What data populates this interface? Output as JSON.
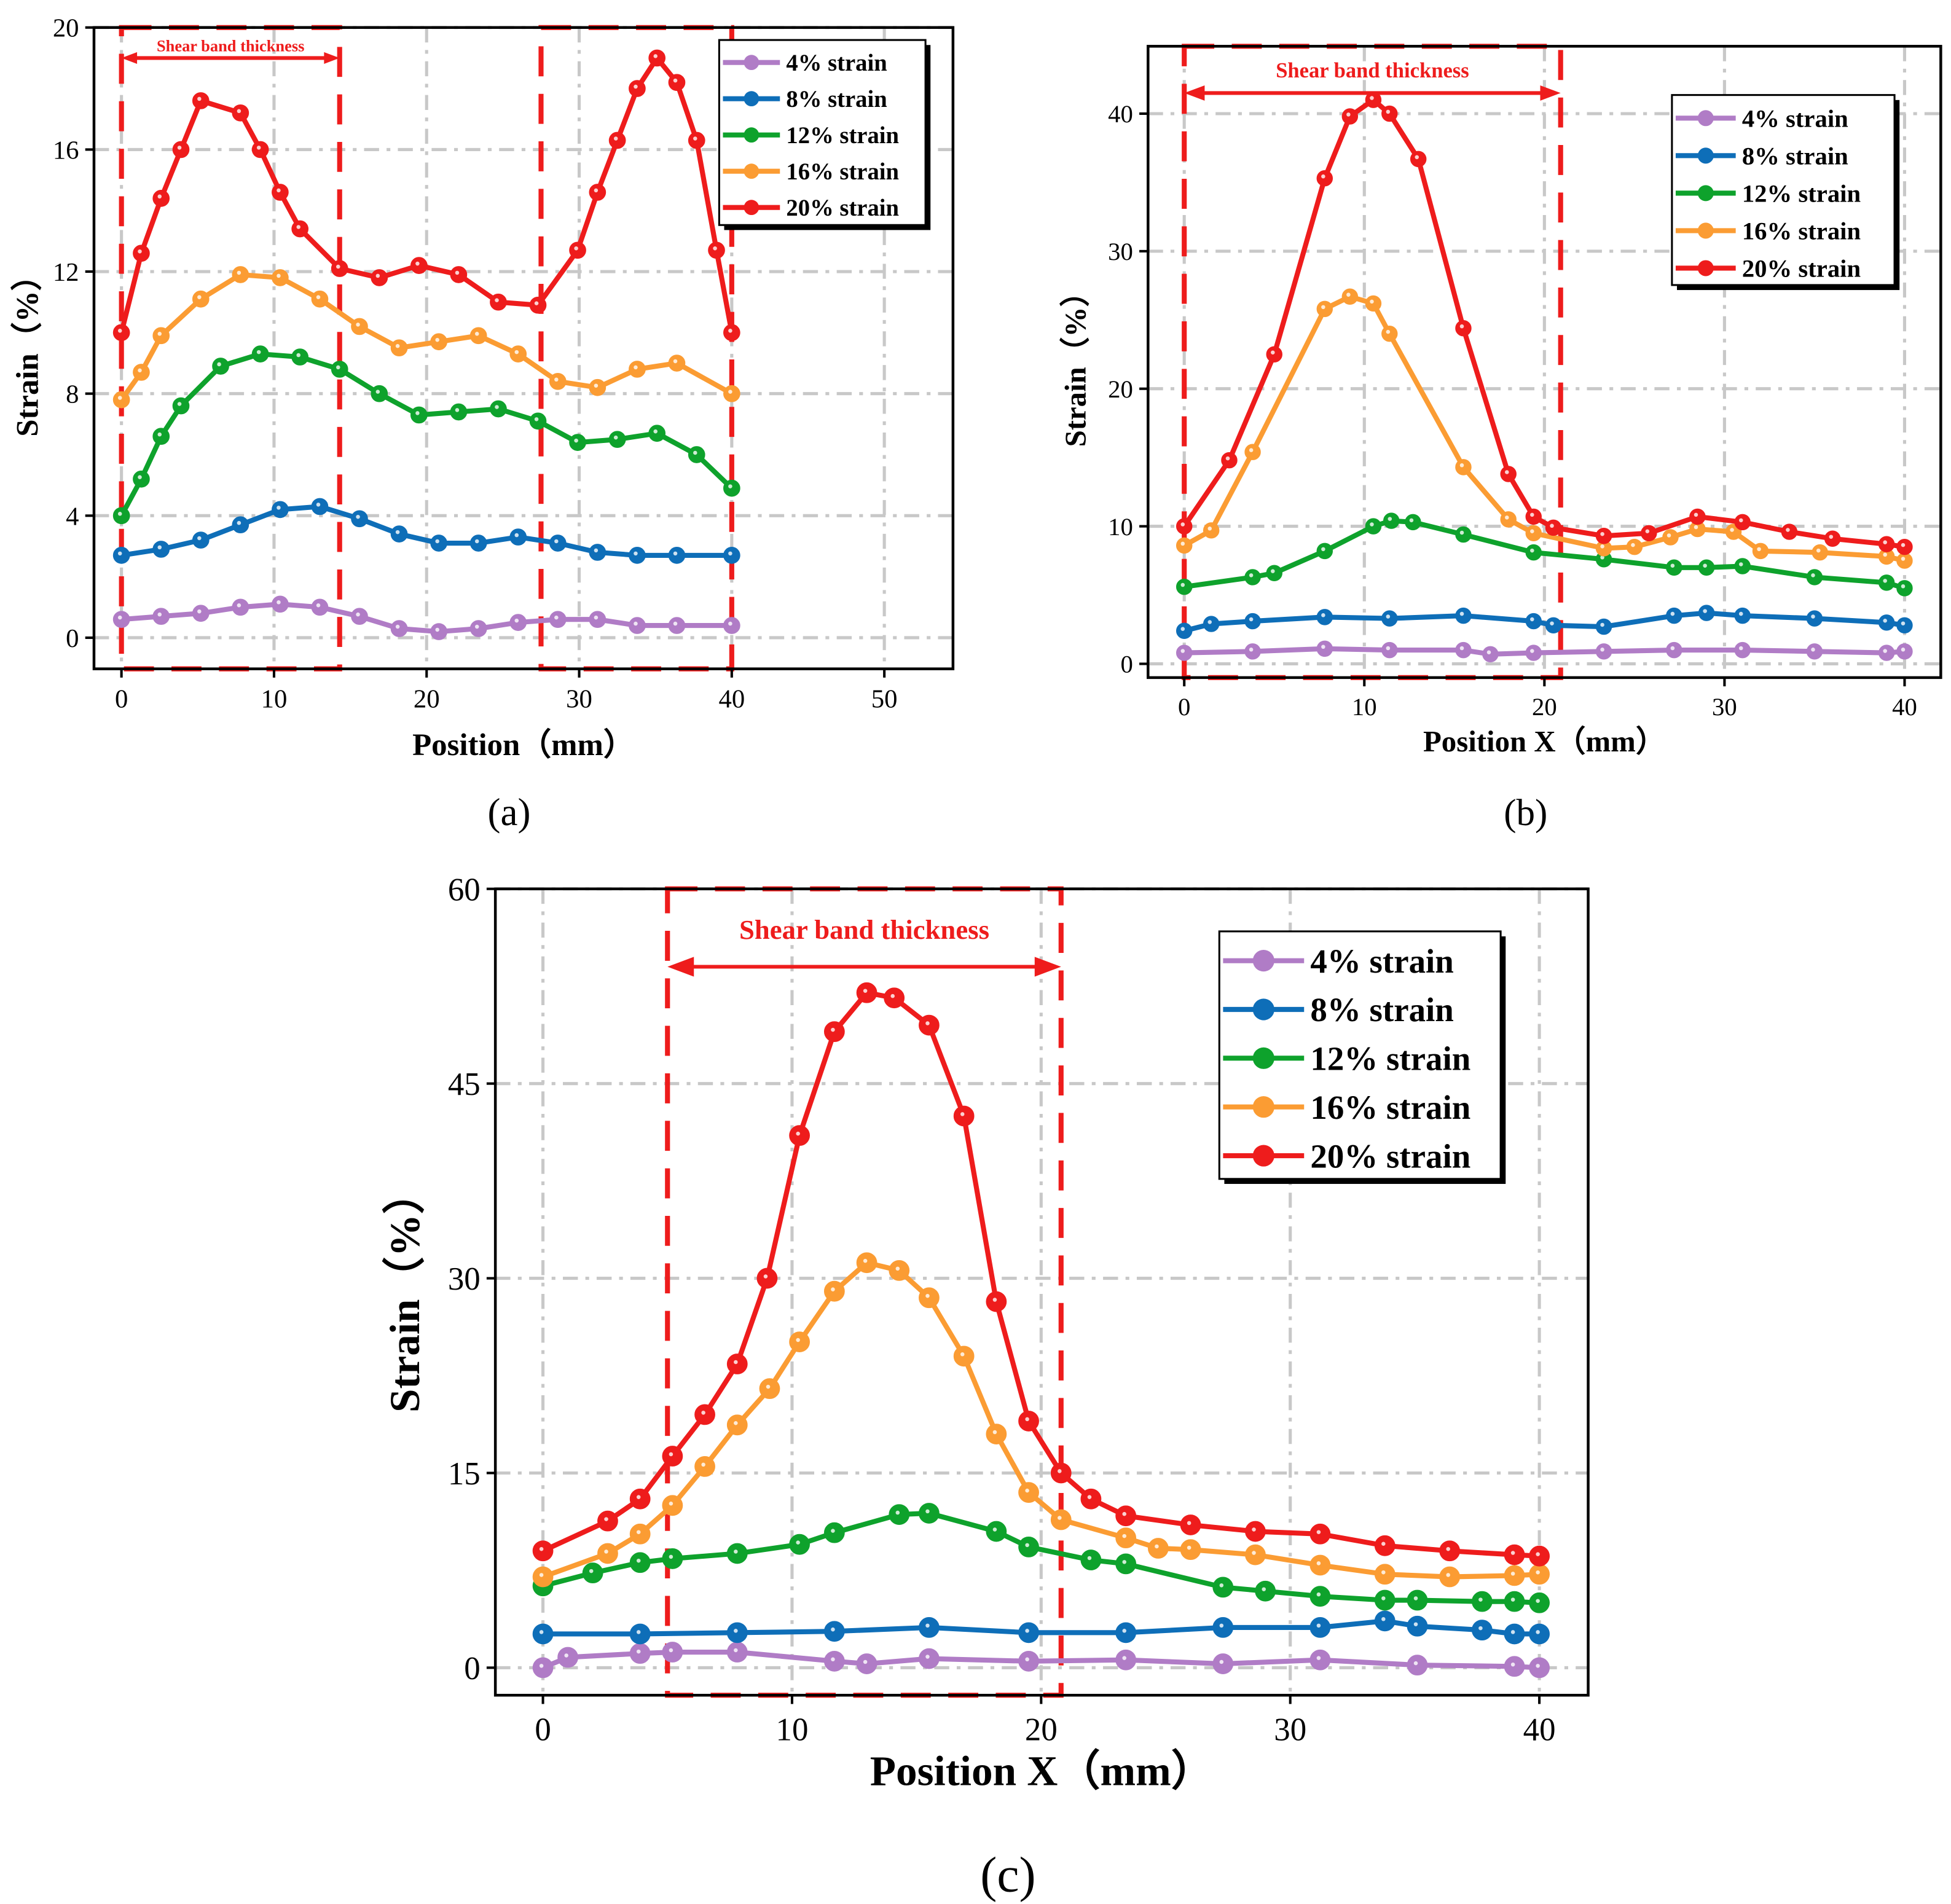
{
  "colors": {
    "4%": "#b07cc6",
    "8%": "#0e6eb8",
    "12%": "#0ea22c",
    "16%": "#fb9c33",
    "20%": "#ee1c1c",
    "annotation": "#ee1c1c",
    "grid": "#c8c8c8"
  },
  "chart_data": [
    {
      "id": "a",
      "type": "line",
      "panel_label": "(a)",
      "xlabel": "Position（mm）",
      "ylabel": "Strain（%）",
      "xlim": [
        -1.8,
        54.5
      ],
      "ylim": [
        -1.02,
        20
      ],
      "xticks": [
        0,
        10,
        20,
        30,
        40,
        50
      ],
      "yticks": [
        0,
        4,
        8,
        12,
        16,
        20
      ],
      "legend_position": "top-right",
      "annotation": {
        "text": "Shear band thickness",
        "arrow_from": 0,
        "arrow_to": 14.3,
        "arrow_y": 19.0
      },
      "shear_bands": [
        [
          0,
          14.3
        ],
        [
          27.5,
          40
        ]
      ],
      "series": [
        {
          "name": "4% strain",
          "color_key": "4%",
          "x": [
            0,
            2.6,
            5.2,
            7.8,
            10.4,
            13,
            15.6,
            18.2,
            20.8,
            23.4,
            26,
            28.6,
            31.2,
            33.8,
            36.4,
            40
          ],
          "y": [
            0.6,
            0.7,
            0.8,
            1.0,
            1.1,
            1.0,
            0.7,
            0.3,
            0.2,
            0.3,
            0.5,
            0.6,
            0.6,
            0.4,
            0.4,
            0.4
          ]
        },
        {
          "name": "8% strain",
          "color_key": "8%",
          "x": [
            0,
            2.6,
            5.2,
            7.8,
            10.4,
            13,
            15.6,
            18.2,
            20.8,
            23.4,
            26,
            28.6,
            31.2,
            33.8,
            36.4,
            40
          ],
          "y": [
            2.7,
            2.9,
            3.2,
            3.7,
            4.2,
            4.3,
            3.9,
            3.4,
            3.1,
            3.1,
            3.3,
            3.1,
            2.8,
            2.7,
            2.7,
            2.7
          ]
        },
        {
          "name": "12% strain",
          "color_key": "12%",
          "x": [
            0,
            1.3,
            2.6,
            3.9,
            6.5,
            9.1,
            11.7,
            14.3,
            16.9,
            19.5,
            22.1,
            24.7,
            27.3,
            29.9,
            32.5,
            35.1,
            37.7,
            40
          ],
          "y": [
            4.0,
            5.2,
            6.6,
            7.6,
            8.9,
            9.3,
            9.2,
            8.8,
            8.0,
            7.3,
            7.4,
            7.5,
            7.1,
            6.4,
            6.5,
            6.7,
            6.0,
            4.9
          ]
        },
        {
          "name": "16% strain",
          "color_key": "16%",
          "x": [
            0,
            1.3,
            2.6,
            5.2,
            7.8,
            10.4,
            13,
            15.6,
            18.2,
            20.8,
            23.4,
            26,
            28.6,
            31.2,
            33.8,
            36.4,
            40
          ],
          "y": [
            7.8,
            8.7,
            9.9,
            11.1,
            11.9,
            11.8,
            11.1,
            10.2,
            9.5,
            9.7,
            9.9,
            9.3,
            8.4,
            8.2,
            8.8,
            9.0,
            8.0
          ]
        },
        {
          "name": "20% strain",
          "color_key": "20%",
          "x": [
            0,
            1.3,
            2.6,
            3.9,
            5.2,
            7.8,
            9.1,
            10.4,
            11.7,
            14.3,
            16.9,
            19.5,
            22.1,
            24.7,
            27.3,
            29.9,
            31.2,
            32.5,
            33.8,
            35.1,
            36.4,
            37.7,
            39,
            40
          ],
          "y": [
            10.0,
            12.6,
            14.4,
            16.0,
            17.6,
            17.2,
            16.0,
            14.6,
            13.4,
            12.1,
            11.8,
            12.2,
            11.9,
            11.0,
            10.9,
            12.7,
            14.6,
            16.3,
            18.0,
            19.0,
            18.2,
            16.3,
            12.7,
            10.0
          ]
        }
      ]
    },
    {
      "id": "b",
      "type": "line",
      "panel_label": "(b)",
      "xlabel": "Position X（mm）",
      "ylabel": "Strain（%）",
      "xlim": [
        -2.01,
        42.01
      ],
      "ylim": [
        -1,
        44.9
      ],
      "xticks": [
        0,
        10,
        20,
        30,
        40
      ],
      "yticks": [
        0,
        10,
        20,
        30,
        40
      ],
      "legend_position": "top-right",
      "annotation": {
        "text": "Shear band thickness",
        "arrow_from": 0,
        "arrow_to": 20.9,
        "arrow_y": 41.5
      },
      "shear_bands": [
        [
          0,
          20.9
        ]
      ],
      "series": [
        {
          "name": "4% strain",
          "color_key": "4%",
          "x": [
            0,
            3.8,
            7.8,
            11.4,
            15.5,
            17,
            19.4,
            23.3,
            27.2,
            31,
            35,
            39,
            40
          ],
          "y": [
            0.8,
            0.9,
            1.1,
            1.0,
            1.0,
            0.7,
            0.8,
            0.9,
            1.0,
            1.0,
            0.9,
            0.8,
            0.9
          ]
        },
        {
          "name": "8% strain",
          "color_key": "8%",
          "x": [
            0,
            1.5,
            3.8,
            7.8,
            11.4,
            15.5,
            19.4,
            20.5,
            23.3,
            27.2,
            29,
            31,
            35,
            39,
            40
          ],
          "y": [
            2.4,
            2.9,
            3.1,
            3.4,
            3.3,
            3.5,
            3.1,
            2.8,
            2.7,
            3.5,
            3.7,
            3.5,
            3.3,
            3.0,
            2.8
          ]
        },
        {
          "name": "12% strain",
          "color_key": "12%",
          "x": [
            0,
            3.8,
            5,
            7.8,
            10.5,
            11.5,
            12.7,
            15.5,
            19.4,
            23.3,
            27.2,
            29,
            31,
            35,
            39,
            40
          ],
          "y": [
            5.6,
            6.3,
            6.6,
            8.2,
            10.0,
            10.4,
            10.3,
            9.4,
            8.1,
            7.6,
            7.0,
            7.0,
            7.1,
            6.3,
            5.9,
            5.5
          ]
        },
        {
          "name": "16% strain",
          "color_key": "16%",
          "x": [
            0,
            1.5,
            3.8,
            7.8,
            9.2,
            10.5,
            11.4,
            15.5,
            18,
            19.4,
            23.3,
            25,
            27,
            28.5,
            30.5,
            32,
            35.3,
            39,
            40
          ],
          "y": [
            8.6,
            9.7,
            15.4,
            25.8,
            26.7,
            26.2,
            24.0,
            14.3,
            10.5,
            9.5,
            8.4,
            8.5,
            9.2,
            9.8,
            9.6,
            8.2,
            8.1,
            7.8,
            7.5
          ]
        },
        {
          "name": "20% strain",
          "color_key": "20%",
          "x": [
            0,
            2.5,
            5,
            7.8,
            9.2,
            10.5,
            11.4,
            13,
            15.5,
            18,
            19.4,
            20.5,
            23.3,
            25.8,
            28.5,
            31,
            33.6,
            36,
            39,
            40
          ],
          "y": [
            10.0,
            14.8,
            22.5,
            35.3,
            39.8,
            41.0,
            40.0,
            36.7,
            24.4,
            13.8,
            10.7,
            9.9,
            9.3,
            9.5,
            10.7,
            10.3,
            9.6,
            9.1,
            8.7,
            8.5
          ]
        }
      ]
    },
    {
      "id": "c",
      "type": "line",
      "panel_label": "(c)",
      "xlabel": "Position X（mm）",
      "ylabel": "Strain（%）",
      "xlim": [
        -1.91,
        41.96
      ],
      "ylim": [
        -2.12,
        60
      ],
      "xticks": [
        0,
        10,
        20,
        30,
        40
      ],
      "yticks": [
        0,
        15,
        30,
        45,
        60
      ],
      "legend_position": "top-right",
      "annotation": {
        "text": "Shear band thickness",
        "arrow_from": 5,
        "arrow_to": 20.8,
        "arrow_y": 54
      },
      "shear_bands": [
        [
          5,
          20.8
        ]
      ],
      "series": [
        {
          "name": "4% strain",
          "color_key": "4%",
          "x": [
            0,
            1,
            3.9,
            5.2,
            7.8,
            11.7,
            13,
            15.5,
            19.5,
            23.4,
            27.3,
            31.2,
            35.1,
            39,
            40
          ],
          "y": [
            0,
            0.8,
            1.1,
            1.2,
            1.2,
            0.5,
            0.3,
            0.7,
            0.5,
            0.6,
            0.3,
            0.6,
            0.2,
            0.1,
            0
          ]
        },
        {
          "name": "8% strain",
          "color_key": "8%",
          "x": [
            0,
            3.9,
            7.8,
            11.7,
            15.5,
            19.5,
            23.4,
            27.3,
            31.2,
            33.8,
            35.1,
            37.7,
            39,
            40
          ],
          "y": [
            2.6,
            2.6,
            2.7,
            2.8,
            3.1,
            2.7,
            2.7,
            3.1,
            3.1,
            3.6,
            3.2,
            2.9,
            2.6,
            2.6
          ]
        },
        {
          "name": "12% strain",
          "color_key": "12%",
          "x": [
            0,
            2,
            3.9,
            5.2,
            7.8,
            10.3,
            11.7,
            14.3,
            15.5,
            18.2,
            19.5,
            22,
            23.4,
            27.3,
            29,
            31.2,
            33.8,
            35.1,
            37.7,
            39,
            40
          ],
          "y": [
            6.3,
            7.3,
            8.1,
            8.4,
            8.8,
            9.5,
            10.4,
            11.8,
            11.9,
            10.5,
            9.3,
            8.3,
            8.0,
            6.2,
            5.9,
            5.5,
            5.2,
            5.2,
            5.1,
            5.1,
            5.0
          ]
        },
        {
          "name": "16% strain",
          "color_key": "16%",
          "x": [
            0,
            2.6,
            3.9,
            5.2,
            6.5,
            7.8,
            9.1,
            10.3,
            11.7,
            13,
            14.3,
            15.5,
            16.9,
            18.2,
            19.5,
            20.8,
            23.4,
            24.7,
            26,
            28.6,
            31.2,
            33.8,
            36.4,
            39,
            40
          ],
          "y": [
            7.0,
            8.8,
            10.3,
            12.5,
            15.5,
            18.7,
            21.5,
            25.1,
            29.0,
            31.2,
            30.6,
            28.5,
            24.0,
            18.0,
            13.5,
            11.4,
            10.0,
            9.2,
            9.1,
            8.7,
            7.9,
            7.2,
            7.0,
            7.1,
            7.2
          ]
        },
        {
          "name": "20% strain",
          "color_key": "20%",
          "x": [
            0,
            2.6,
            3.9,
            5.2,
            6.5,
            7.8,
            9,
            10.3,
            11.7,
            13,
            14.1,
            15.5,
            16.9,
            18.2,
            19.5,
            20.8,
            22,
            23.4,
            26,
            28.6,
            31.2,
            33.8,
            36.4,
            39,
            40
          ],
          "y": [
            9.0,
            11.3,
            13.0,
            16.3,
            19.5,
            23.4,
            30.0,
            41.0,
            49.0,
            52.0,
            51.6,
            49.5,
            42.5,
            28.2,
            19.0,
            15.0,
            13.0,
            11.7,
            11.0,
            10.5,
            10.3,
            9.4,
            9.0,
            8.7,
            8.6
          ]
        }
      ]
    }
  ]
}
